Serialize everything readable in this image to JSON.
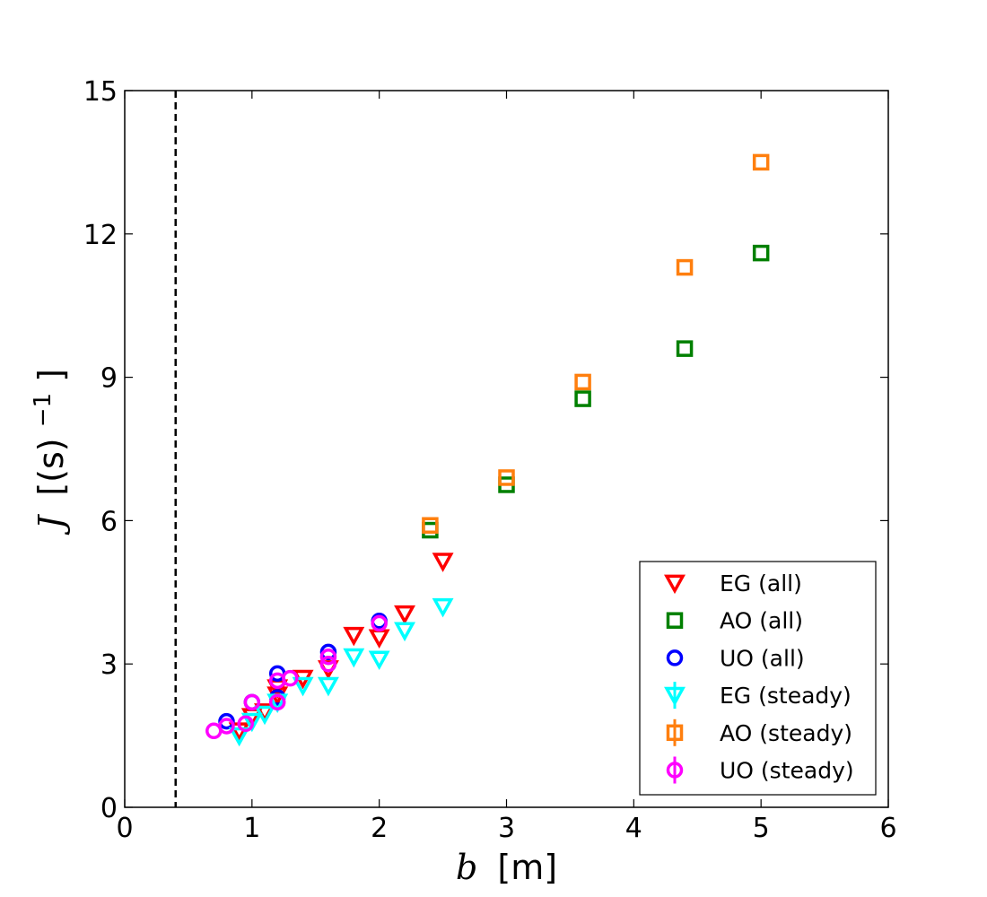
{
  "chart_data": {
    "type": "scatter",
    "title": "",
    "xlabel": {
      "symbol": "b",
      "unit": "[m]"
    },
    "ylabel": {
      "symbol": "J",
      "unit": "[(s)",
      "exponent": "−1",
      "close": "]"
    },
    "xlim": [
      0,
      6
    ],
    "ylim": [
      0,
      15
    ],
    "xticks": [
      0,
      1,
      2,
      3,
      4,
      5,
      6
    ],
    "yticks": [
      0,
      3,
      6,
      9,
      12,
      15
    ],
    "xtick_labels": [
      "0",
      "1",
      "2",
      "3",
      "4",
      "5",
      "6"
    ],
    "ytick_labels": [
      "0",
      "3",
      "6",
      "9",
      "12",
      "15"
    ],
    "vline": {
      "x": 0.4,
      "style": "dashed",
      "color": "#000000"
    },
    "legend_position": "lower-right",
    "series": [
      {
        "name": "EG (all)",
        "marker": "triangle-down",
        "color": "#ff0000",
        "errorbars": false,
        "points": [
          [
            0.9,
            1.6
          ],
          [
            1.0,
            1.9
          ],
          [
            1.1,
            2.0
          ],
          [
            1.2,
            2.35
          ],
          [
            1.2,
            2.5
          ],
          [
            1.4,
            2.7
          ],
          [
            1.6,
            2.9
          ],
          [
            1.8,
            3.6
          ],
          [
            2.0,
            3.55
          ],
          [
            2.2,
            4.05
          ],
          [
            2.5,
            5.15
          ]
        ]
      },
      {
        "name": "AO (all)",
        "marker": "square",
        "color": "#008000",
        "errorbars": false,
        "points": [
          [
            2.4,
            5.8
          ],
          [
            3.0,
            6.75
          ],
          [
            3.6,
            8.55
          ],
          [
            4.4,
            9.6
          ],
          [
            5.0,
            11.6
          ]
        ]
      },
      {
        "name": "UO (all)",
        "marker": "circle",
        "color": "#0000ff",
        "errorbars": false,
        "points": [
          [
            0.8,
            1.8
          ],
          [
            1.0,
            2.2
          ],
          [
            1.2,
            2.8
          ],
          [
            1.2,
            2.3
          ],
          [
            1.6,
            3.25
          ],
          [
            2.0,
            3.9
          ]
        ]
      },
      {
        "name": "EG (steady)",
        "marker": "triangle-down",
        "color": "#00ffff",
        "errorbars": true,
        "points": [
          [
            0.9,
            1.5
          ],
          [
            1.0,
            1.8
          ],
          [
            1.1,
            1.95
          ],
          [
            1.2,
            2.2
          ],
          [
            1.4,
            2.55
          ],
          [
            1.6,
            2.55
          ],
          [
            1.8,
            3.15
          ],
          [
            2.0,
            3.1
          ],
          [
            2.2,
            3.7
          ],
          [
            2.5,
            4.2
          ]
        ]
      },
      {
        "name": "AO (steady)",
        "marker": "square",
        "color": "#ff7f0e",
        "errorbars": true,
        "points": [
          [
            2.4,
            5.9
          ],
          [
            3.0,
            6.9
          ],
          [
            3.6,
            8.9
          ],
          [
            4.4,
            11.3
          ],
          [
            5.0,
            13.5
          ]
        ]
      },
      {
        "name": "UO (steady)",
        "marker": "circle",
        "color": "#ff00ff",
        "errorbars": true,
        "points": [
          [
            0.7,
            1.6
          ],
          [
            0.8,
            1.7
          ],
          [
            0.95,
            1.75
          ],
          [
            1.0,
            2.2
          ],
          [
            1.2,
            2.65
          ],
          [
            1.2,
            2.2
          ],
          [
            1.3,
            2.7
          ],
          [
            1.6,
            3.0
          ],
          [
            1.6,
            3.15
          ],
          [
            2.0,
            3.85
          ]
        ]
      }
    ]
  }
}
